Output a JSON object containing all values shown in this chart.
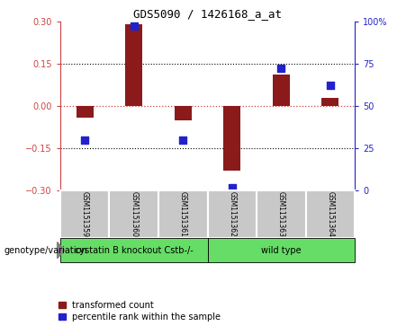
{
  "title": "GDS5090 / 1426168_a_at",
  "samples": [
    "GSM1151359",
    "GSM1151360",
    "GSM1151361",
    "GSM1151362",
    "GSM1151363",
    "GSM1151364"
  ],
  "bar_values": [
    -0.04,
    0.29,
    -0.05,
    -0.23,
    0.11,
    0.03
  ],
  "percentile_values": [
    30,
    97,
    30,
    2,
    72,
    62
  ],
  "ylim_left": [
    -0.3,
    0.3
  ],
  "ylim_right": [
    0,
    100
  ],
  "yticks_left": [
    -0.3,
    -0.15,
    0,
    0.15,
    0.3
  ],
  "yticks_right": [
    0,
    25,
    50,
    75,
    100
  ],
  "hlines_dotted": [
    0.15,
    -0.15
  ],
  "bar_color": "#8B1A1A",
  "dot_color": "#2222CC",
  "zero_line_color": "#CC4444",
  "group_box_color": "#C8C8C8",
  "group1_label": "cystatin B knockout Cstb-/-",
  "group2_label": "wild type",
  "group_color": "#66DD66",
  "legend_labels": [
    "transformed count",
    "percentile rank within the sample"
  ],
  "genotype_label": "genotype/variation",
  "bar_width": 0.35,
  "dot_size": 35,
  "title_fontsize": 9,
  "tick_fontsize": 7,
  "sample_fontsize": 5.5,
  "group_fontsize": 7,
  "legend_fontsize": 7
}
